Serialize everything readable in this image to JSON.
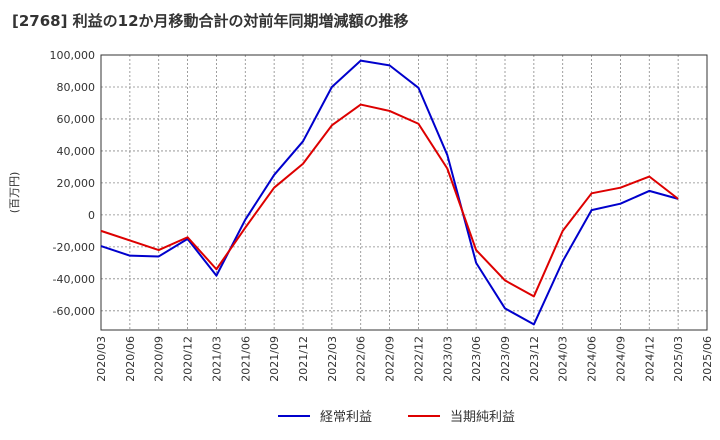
{
  "chart_data": {
    "type": "line",
    "title": "[2768]  利益の12か月移動合計の対前年同期増減額の推移",
    "ylabel": "(百万円)",
    "xlabel": "",
    "ylim": [
      -72000,
      100000
    ],
    "yticks": [
      100000,
      80000,
      60000,
      40000,
      20000,
      0,
      -20000,
      -40000,
      -60000
    ],
    "ytick_labels": [
      "100,000",
      "80,000",
      "60,000",
      "40,000",
      "20,000",
      "0",
      "-20,000",
      "-40,000",
      "-60,000"
    ],
    "categories": [
      "2020/03",
      "2020/06",
      "2020/09",
      "2020/12",
      "2021/03",
      "2021/06",
      "2021/09",
      "2021/12",
      "2022/03",
      "2022/06",
      "2022/09",
      "2022/12",
      "2023/03",
      "2023/06",
      "2023/09",
      "2023/12",
      "2024/03",
      "2024/06",
      "2024/09",
      "2024/12",
      "2025/03",
      "2025/06"
    ],
    "series": [
      {
        "name": "経常利益",
        "color": "#0000cc",
        "values": [
          -19500,
          -25500,
          -26000,
          -15000,
          -38000,
          -3000,
          25000,
          46000,
          80000,
          96500,
          93500,
          79500,
          37500,
          -30000,
          -58500,
          -68500,
          -29000,
          3000,
          7000,
          15000,
          10000,
          null
        ]
      },
      {
        "name": "当期純利益",
        "color": "#dd0000",
        "values": [
          -10000,
          -16000,
          -22000,
          -14000,
          -34000,
          -8000,
          17000,
          32000,
          56000,
          69000,
          65000,
          57000,
          29000,
          -22000,
          -41000,
          -51000,
          -10000,
          13500,
          17000,
          24000,
          10000,
          null
        ]
      }
    ],
    "grid": true,
    "legend": "bottom"
  }
}
